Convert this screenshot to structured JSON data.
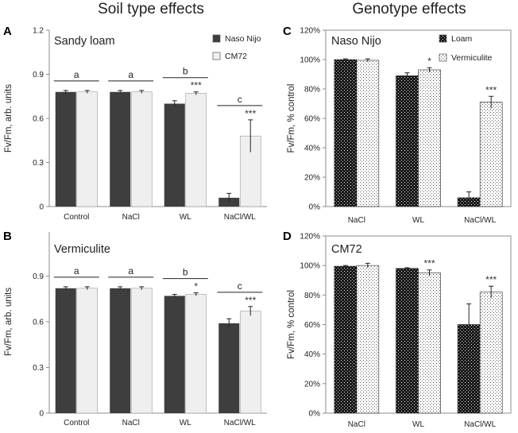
{
  "titles": {
    "left": "Soil type effects",
    "right": "Genotype effects"
  },
  "colors": {
    "dark_bar": "#3e3e3e",
    "light_bar": "#efefef",
    "axis": "#8c8c8c",
    "error": "#222222"
  },
  "chart_data": [
    {
      "panel": "A",
      "type": "bar",
      "title": "Sandy loam",
      "ylabel": "Fv/Fm, arb. units",
      "ylim": [
        0,
        1.2
      ],
      "yticks": [
        "0",
        "0.3",
        "0.6",
        "0.9",
        "1.2"
      ],
      "yticks_values": [
        0,
        0.3,
        0.6,
        0.9,
        1.2
      ],
      "categories": [
        "Control",
        "NaCl",
        "WL",
        "NaCl/WL"
      ],
      "series": [
        {
          "name": "Naso Nijo",
          "pattern": "dark",
          "values": [
            0.78,
            0.78,
            0.7,
            0.06
          ],
          "errors": [
            0.01,
            0.01,
            0.02,
            0.03
          ]
        },
        {
          "name": "CM72",
          "pattern": "light",
          "values": [
            0.78,
            0.78,
            0.77,
            0.48
          ],
          "errors": [
            0.01,
            0.01,
            0.01,
            0.11
          ]
        }
      ],
      "significance": [
        "",
        "",
        "***",
        "***"
      ],
      "groups": [
        "a",
        "a",
        "b",
        "c"
      ],
      "legend": [
        "Naso Nijo",
        "CM72"
      ],
      "legend_position": "top-right"
    },
    {
      "panel": "B",
      "type": "bar",
      "title": "Vermiculite",
      "ylabel": "Fv/Fm, arb. units",
      "ylim": [
        0,
        1.2
      ],
      "yticks": [
        "0",
        "0.3",
        "0.6",
        "0.9"
      ],
      "yticks_values": [
        0,
        0.3,
        0.6,
        0.9
      ],
      "categories": [
        "Control",
        "NaCl",
        "WL",
        "NaCl/WL"
      ],
      "series": [
        {
          "name": "Naso Nijo",
          "pattern": "dark",
          "values": [
            0.82,
            0.82,
            0.77,
            0.59
          ],
          "errors": [
            0.01,
            0.01,
            0.01,
            0.03
          ]
        },
        {
          "name": "CM72",
          "pattern": "light",
          "values": [
            0.82,
            0.82,
            0.78,
            0.67
          ],
          "errors": [
            0.01,
            0.01,
            0.01,
            0.03
          ]
        }
      ],
      "significance": [
        "",
        "",
        "*",
        "***"
      ],
      "groups": [
        "a",
        "a",
        "b",
        "c"
      ]
    },
    {
      "panel": "C",
      "type": "bar",
      "title": "Naso Nijo",
      "ylabel": "Fv/Fm, % control",
      "ylim": [
        0,
        120
      ],
      "yticks": [
        "0%",
        "20%",
        "40%",
        "60%",
        "80%",
        "100%",
        "120%"
      ],
      "yticks_values": [
        0,
        20,
        40,
        60,
        80,
        100,
        120
      ],
      "categories": [
        "NaCl",
        "WL",
        "NaCl/WL"
      ],
      "series": [
        {
          "name": "Loam",
          "pattern": "dots-dark",
          "values": [
            100,
            89,
            6
          ],
          "errors": [
            0.5,
            2,
            4
          ]
        },
        {
          "name": "Vermiculite",
          "pattern": "dots-light",
          "values": [
            99.5,
            93,
            71
          ],
          "errors": [
            1,
            1.5,
            4
          ]
        }
      ],
      "significance": [
        "",
        "*",
        "***"
      ],
      "legend": [
        "Loam",
        "Vermiculite"
      ],
      "legend_position": "top-right"
    },
    {
      "panel": "D",
      "type": "bar",
      "title": "CM72",
      "ylabel": "Fv/Fm, % control",
      "ylim": [
        0,
        120
      ],
      "yticks": [
        "0%",
        "20%",
        "40%",
        "60%",
        "80%",
        "100%",
        "120%"
      ],
      "yticks_values": [
        0,
        20,
        40,
        60,
        80,
        100,
        120
      ],
      "categories": [
        "NaCl",
        "WL",
        "NaCl/WL"
      ],
      "series": [
        {
          "name": "Loam",
          "pattern": "dots-dark",
          "values": [
            99.5,
            98,
            60
          ],
          "errors": [
            0.5,
            0.5,
            14
          ]
        },
        {
          "name": "Vermiculite",
          "pattern": "dots-light",
          "values": [
            100,
            95,
            82
          ],
          "errors": [
            1.5,
            2,
            4
          ]
        }
      ],
      "significance": [
        "",
        "***",
        "***"
      ]
    }
  ]
}
